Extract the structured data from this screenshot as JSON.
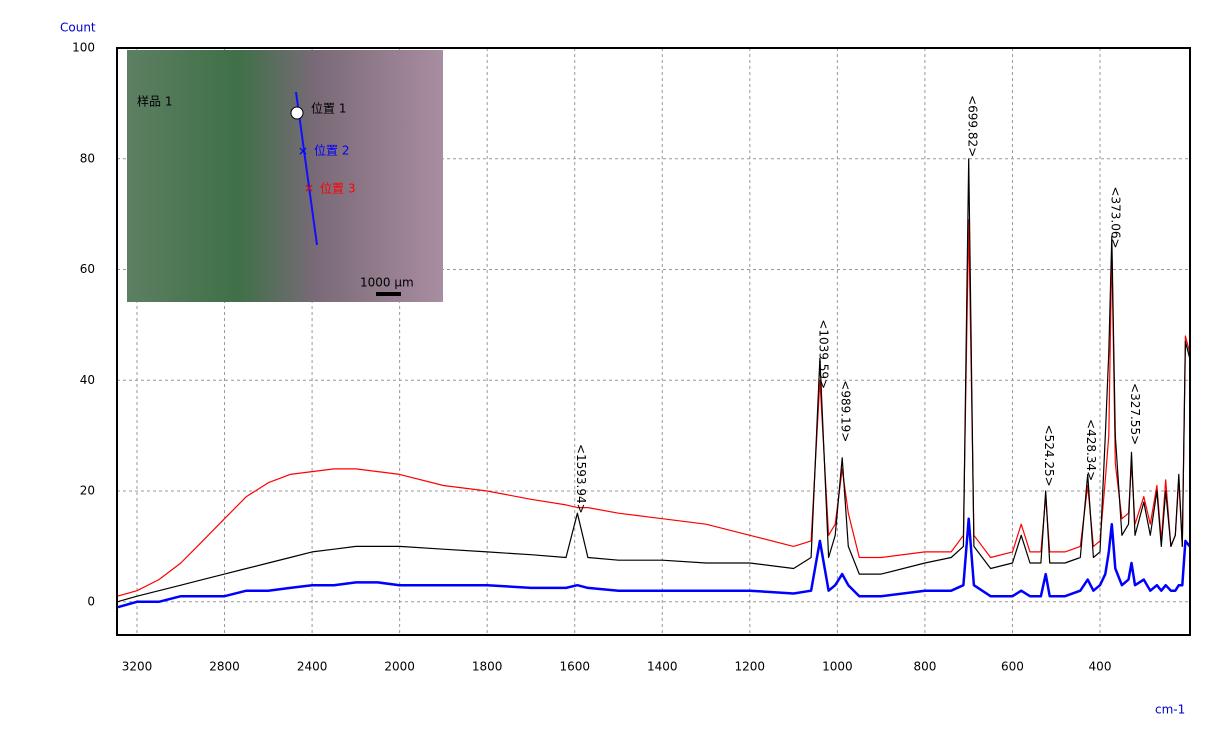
{
  "chart_data": {
    "type": "line",
    "y_label": "Count",
    "x_label": "cm-1",
    "x": [
      3290,
      3200,
      3100,
      3000,
      2900,
      2800,
      2700,
      2600,
      2500,
      2400,
      2300,
      2200,
      2100,
      2000,
      1900,
      1800,
      1700,
      1620,
      1594,
      1570,
      1500,
      1400,
      1300,
      1200,
      1100,
      1060,
      1040,
      1020,
      1005,
      989,
      975,
      950,
      900,
      800,
      740,
      712,
      700,
      688,
      650,
      600,
      580,
      560,
      535,
      524,
      515,
      480,
      445,
      428,
      415,
      400,
      388,
      380,
      373,
      365,
      350,
      335,
      328,
      320,
      300,
      285,
      270,
      260,
      250,
      238,
      228,
      220,
      212,
      205,
      195
    ],
    "series": [
      {
        "name": "位置 3",
        "color": "#ff0000",
        "values": [
          1,
          2,
          4,
          7,
          11,
          15,
          19,
          21.5,
          23,
          23.5,
          24,
          24,
          23.5,
          23,
          21,
          20,
          18.5,
          17.5,
          17,
          17,
          16,
          15,
          14,
          12,
          10,
          11,
          40,
          12,
          14,
          24,
          16,
          8,
          8,
          9,
          9,
          12,
          69,
          12,
          8,
          9,
          14,
          9,
          9,
          19,
          9,
          9,
          10,
          21,
          10,
          11,
          22,
          30,
          64,
          25,
          15,
          16,
          25,
          14,
          19,
          14,
          21,
          11,
          22,
          10,
          12,
          22,
          10,
          48,
          45
        ]
      },
      {
        "name": "位置 1",
        "color": "#000000",
        "values": [
          0,
          1,
          2,
          3,
          4,
          5,
          6,
          7,
          8,
          9,
          9.5,
          10,
          10,
          10,
          9.5,
          9,
          8.5,
          8,
          16,
          8,
          7.5,
          7.5,
          7,
          7,
          6,
          8,
          44,
          8,
          12,
          26,
          10,
          5,
          5,
          7,
          8,
          10,
          80,
          10,
          6,
          7,
          12,
          7,
          7,
          20,
          7,
          7,
          8,
          23,
          8,
          9,
          30,
          45,
          66,
          30,
          12,
          14,
          27,
          12,
          18,
          12,
          20,
          10,
          20,
          10,
          12,
          23,
          10,
          47,
          44
        ]
      },
      {
        "name": "位置 2",
        "color": "#0000ff",
        "values": [
          -1,
          0,
          0,
          1,
          1,
          1,
          2,
          2,
          2.5,
          3,
          3,
          3.5,
          3.5,
          3,
          3,
          3,
          2.5,
          2.5,
          3,
          2.5,
          2,
          2,
          2,
          2,
          1.5,
          2,
          11,
          2,
          3,
          5,
          3,
          1,
          1,
          2,
          2,
          3,
          15,
          3,
          1,
          1,
          2,
          1,
          1,
          5,
          1,
          1,
          2,
          4,
          2,
          3,
          5,
          9,
          14,
          6,
          3,
          4,
          7,
          3,
          4,
          2,
          3,
          2,
          3,
          2,
          2,
          3,
          3,
          11,
          10
        ]
      }
    ],
    "xlim": [
      3290,
      195
    ],
    "xticks": [
      3200,
      2800,
      2400,
      2000,
      1800,
      1600,
      1400,
      1200,
      1000,
      800,
      600,
      400
    ],
    "ylim": [
      -6,
      100
    ],
    "yticks": [
      0,
      20,
      40,
      60,
      80,
      100
    ],
    "grid": true,
    "annotations": [
      {
        "text": "<1593.94>",
        "x": 1593.94,
        "y": 28.5
      },
      {
        "text": "<1039.59>",
        "x": 1039.59,
        "y": 51
      },
      {
        "text": "<989.19>",
        "x": 989.19,
        "y": 40
      },
      {
        "text": "<699.82>",
        "x": 699.82,
        "y": 91.5
      },
      {
        "text": "<524.25>",
        "x": 524.25,
        "y": 32
      },
      {
        "text": "<428.34>",
        "x": 428.34,
        "y": 33
      },
      {
        "text": "<373.06>",
        "x": 373.06,
        "y": 75
      },
      {
        "text": "<327.55>",
        "x": 327.55,
        "y": 39.5
      }
    ],
    "inset": {
      "title": "样品 1",
      "scale": "1000 µm"
    }
  }
}
